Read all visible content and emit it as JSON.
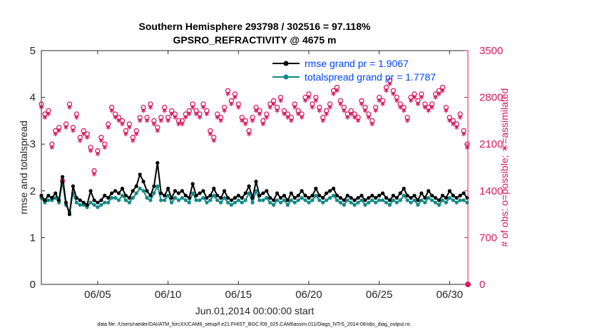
{
  "chart_data": {
    "type": "line",
    "title_line1": "Southern Hemisphere 293798 / 302516 = 97.118%",
    "title_line2": "GPSRO_REFRACTIVITY @ 4675 m",
    "xlabel": "Jun.01,2014 00:00:00 start",
    "ylabel_left": "rmse and totalspread",
    "ylabel_right": "# of obs: o=possible; ∗=assimilated",
    "xlim": [
      1,
      31.3
    ],
    "ylim_left": [
      0,
      5
    ],
    "ylim_right": [
      0,
      3500
    ],
    "x_ticks": [
      {
        "v": 5,
        "label": "06/05"
      },
      {
        "v": 10,
        "label": "06/10"
      },
      {
        "v": 15,
        "label": "06/15"
      },
      {
        "v": 20,
        "label": "06/20"
      },
      {
        "v": 25,
        "label": "06/25"
      },
      {
        "v": 30,
        "label": "06/30"
      }
    ],
    "y_ticks_left": [
      "0",
      "1",
      "2",
      "3",
      "4",
      "5"
    ],
    "y_ticks_right": [
      "0",
      "700",
      "1400",
      "2100",
      "2800",
      "3500"
    ],
    "legend": [
      "rmse grand pr = 1.9067",
      "totalspread grand pr = 1.7787"
    ],
    "x_start": 1.0,
    "x_step": 0.25,
    "series": [
      {
        "name": "rmse",
        "color": "#000000",
        "values": [
          1.9,
          1.8,
          1.9,
          1.85,
          1.95,
          1.8,
          2.3,
          1.75,
          1.5,
          2.1,
          1.85,
          1.8,
          1.75,
          1.7,
          2.0,
          1.8,
          1.75,
          1.8,
          1.9,
          1.85,
          1.95,
          2.0,
          1.95,
          2.05,
          1.9,
          1.85,
          2.0,
          2.1,
          2.35,
          2.2,
          2.0,
          1.9,
          2.1,
          2.6,
          1.95,
          1.9,
          2.05,
          1.85,
          2.0,
          1.95,
          2.0,
          1.9,
          1.85,
          2.15,
          1.9,
          1.95,
          2.0,
          1.85,
          1.9,
          2.05,
          1.9,
          1.85,
          2.0,
          1.85,
          1.8,
          1.85,
          1.9,
          1.85,
          1.95,
          2.1,
          1.85,
          2.2,
          1.9,
          1.95,
          2.0,
          1.85,
          1.8,
          1.95,
          1.85,
          1.9,
          1.8,
          1.95,
          1.85,
          1.9,
          2.0,
          1.9,
          1.85,
          1.9,
          2.05,
          1.9,
          1.85,
          1.95,
          2.0,
          2.05,
          1.9,
          1.85,
          1.8,
          1.9,
          1.85,
          1.8,
          1.85,
          1.9,
          1.8,
          1.85,
          1.9,
          1.85,
          1.9,
          1.95,
          1.85,
          1.8,
          1.9,
          1.85,
          1.95,
          2.05,
          1.9,
          1.85,
          1.9,
          1.8,
          1.95,
          1.85,
          2.0,
          1.9,
          1.85,
          1.8,
          1.9,
          1.85,
          2.0,
          1.9,
          1.85,
          1.9,
          1.95,
          1.85,
          1.9,
          2.0,
          1.85,
          1.9,
          1.85,
          1.9,
          1.95,
          1.9,
          1.85,
          2.0,
          1.95,
          1.9,
          1.85,
          1.95,
          1.8,
          1.9,
          1.85,
          2.0,
          1.9,
          1.95,
          2.0,
          1.9,
          1.85,
          1.95,
          1.9,
          1.85,
          1.95,
          2.0,
          1.9,
          1.85,
          1.95,
          1.9,
          1.8,
          1.9,
          1.95,
          2.0,
          1.9,
          1.85,
          1.95,
          1.85,
          1.9,
          2.0,
          1.95,
          2.0,
          1.9,
          1.85,
          1.9,
          1.8,
          1.95,
          1.9,
          2.0,
          1.9,
          1.85,
          1.95,
          1.9,
          1.85,
          2.0,
          1.95,
          1.9,
          2.05,
          1.9,
          1.85,
          2.0,
          1.95,
          1.85,
          1.95,
          2.0,
          1.9,
          1.85,
          1.95,
          2.05,
          1.9,
          1.85,
          1.95,
          2.0,
          1.9,
          1.85,
          1.9,
          1.95,
          2.0,
          1.85,
          1.9,
          1.95,
          2.0,
          1.9,
          2.0,
          2.05,
          1.9,
          1.95,
          1.9,
          1.85,
          1.9,
          1.95,
          2.0,
          1.9,
          2.0,
          1.85,
          1.9,
          1.95,
          2.0,
          1.9,
          1.85,
          1.95,
          2.0,
          1.95,
          1.9,
          1.85,
          1.9,
          1.95,
          2.0,
          1.9,
          1.95,
          2.0,
          1.9,
          1.95,
          2.0,
          1.9,
          1.85,
          1.95,
          2.05,
          1.9,
          1.85,
          1.95,
          2.0,
          1.9,
          1.85,
          1.95,
          2.05,
          1.95,
          1.9,
          1.85,
          1.95,
          2.0,
          1.9,
          1.85,
          1.9,
          1.95,
          1.9,
          1.85,
          1.95,
          2.0,
          1.9,
          1.95,
          2.0,
          1.9,
          1.85,
          1.95,
          2.0,
          1.9,
          1.95,
          2.05,
          1.9,
          1.85,
          1.95,
          2.0,
          1.9,
          1.85,
          1.95,
          2.0,
          1.9,
          1.95,
          2.0,
          1.95,
          1.9,
          1.85,
          1.95,
          2.0,
          1.9,
          1.85,
          1.95,
          2.0,
          1.9,
          1.85,
          1.95,
          2.0,
          1.95,
          1.9,
          1.85,
          1.95,
          2.05,
          1.9,
          1.85,
          1.95,
          2.0,
          1.9,
          1.95,
          2.05
        ]
      },
      {
        "name": "totalspread",
        "color": "#108a85",
        "values": [
          1.85,
          1.75,
          1.8,
          1.8,
          1.85,
          1.75,
          2.2,
          1.7,
          1.55,
          1.95,
          1.75,
          1.7,
          1.7,
          1.65,
          1.75,
          1.7,
          1.65,
          1.7,
          1.75,
          1.75,
          1.85,
          1.85,
          1.8,
          1.9,
          1.8,
          1.75,
          1.85,
          1.95,
          2.05,
          2.0,
          1.85,
          1.8,
          1.95,
          2.1,
          1.8,
          1.8,
          1.9,
          1.75,
          1.85,
          1.8,
          1.85,
          1.8,
          1.75,
          1.95,
          1.8,
          1.8,
          1.85,
          1.75,
          1.8,
          1.9,
          1.8,
          1.75,
          1.85,
          1.75,
          1.7,
          1.75,
          1.8,
          1.75,
          1.8,
          1.95,
          1.75,
          2.0,
          1.8,
          1.8,
          1.85,
          1.75,
          1.7,
          1.8,
          1.75,
          1.8,
          1.7,
          1.8,
          1.75,
          1.8,
          1.85,
          1.8,
          1.75,
          1.8,
          1.9,
          1.8,
          1.75,
          1.8,
          1.85,
          1.9,
          1.8,
          1.75,
          1.7,
          1.8,
          1.75,
          1.7,
          1.75,
          1.8,
          1.7,
          1.75,
          1.8,
          1.75,
          1.8,
          1.8,
          1.75,
          1.7,
          1.8,
          1.75,
          1.8,
          1.9,
          1.8,
          1.75,
          1.8,
          1.7,
          1.8,
          1.75,
          1.85,
          1.8,
          1.75,
          1.7,
          1.8,
          1.75,
          1.85,
          1.8,
          1.75,
          1.8,
          1.8,
          1.75,
          1.8,
          1.85,
          1.75,
          1.8,
          1.75,
          1.8,
          1.8,
          1.8,
          1.75,
          1.85,
          1.8,
          1.8,
          1.75,
          1.8,
          1.7,
          1.8,
          1.75,
          1.85,
          1.8,
          1.8,
          1.85,
          1.8,
          1.75,
          1.8,
          1.8,
          1.75,
          1.8,
          1.85,
          1.8,
          1.75,
          1.8,
          1.8,
          1.7,
          1.8,
          1.8,
          1.85,
          1.8,
          1.75,
          1.8,
          1.75,
          1.8,
          1.85,
          1.8,
          1.85,
          1.8,
          1.75,
          1.8,
          1.7,
          1.8,
          1.8,
          1.85,
          1.8,
          1.75,
          1.8,
          1.8,
          1.75,
          1.85,
          1.8,
          1.8,
          1.9,
          1.8,
          1.75,
          1.85,
          1.8,
          1.75,
          1.8,
          1.85,
          1.8,
          1.75,
          1.8,
          1.9,
          1.8,
          1.75,
          1.8,
          1.85,
          1.8,
          1.75,
          1.8,
          1.8,
          1.85,
          1.75,
          1.8,
          1.8,
          1.85,
          1.8,
          1.85,
          1.9,
          1.8,
          1.8,
          1.8,
          1.75,
          1.8,
          1.8,
          1.85,
          1.8,
          1.85,
          1.75,
          1.8,
          1.8,
          1.85,
          1.8,
          1.75,
          1.8,
          1.85,
          1.8,
          1.8,
          1.75,
          1.8,
          1.8,
          1.85,
          1.8,
          1.8,
          1.85,
          1.8,
          1.8,
          1.85,
          1.8,
          1.75,
          1.8,
          1.9,
          1.8,
          1.75,
          1.8,
          1.85,
          1.8,
          1.75,
          1.8,
          1.9,
          1.8,
          1.8,
          1.75,
          1.8,
          1.85,
          1.8,
          1.75,
          1.8,
          1.8,
          1.8,
          1.75,
          1.8,
          1.85,
          1.8,
          1.8,
          1.85,
          1.8,
          1.75,
          1.8,
          1.85,
          1.8,
          1.8,
          1.9,
          1.8,
          1.75,
          1.8,
          1.85,
          1.8,
          1.75,
          1.8,
          1.85,
          1.8,
          1.8,
          1.85,
          1.8,
          1.8,
          1.75,
          1.8,
          1.85,
          1.8,
          1.75,
          1.8,
          1.85,
          1.8,
          1.75,
          1.8,
          1.85,
          1.8,
          1.8,
          1.75,
          1.8,
          1.9,
          1.8,
          1.75,
          1.8,
          1.85,
          1.8,
          1.8,
          1.9
        ]
      }
    ],
    "obs_possible": [
      2700,
      2550,
      2600,
      2100,
      2300,
      2350,
      1550,
      2400,
      2700,
      2350,
      2550,
      2200,
      2300,
      2250,
      2050,
      1700,
      2000,
      2200,
      2100,
      2400,
      2650,
      2550,
      2500,
      2450,
      2300,
      2400,
      2200,
      2300,
      2500,
      2650,
      2500,
      2700,
      2450,
      2350,
      2500,
      2650,
      2500,
      2600,
      2550,
      2450,
      2450,
      2550,
      2600,
      2700,
      2600,
      2550,
      2700,
      2600,
      2300,
      2200,
      2550,
      2500,
      2650,
      2900,
      2750,
      2850,
      2700,
      2500,
      2450,
      2300,
      2500,
      2650,
      2600,
      2450,
      2550,
      2700,
      2750,
      2650,
      2800,
      2600,
      2550,
      2500,
      2700,
      2600,
      2550,
      2800,
      2850,
      2700,
      2800,
      2650,
      2500,
      2600,
      2700,
      2900,
      2950,
      2750,
      2650,
      2550,
      2600,
      2550,
      2500,
      2750,
      2650,
      2550,
      2450,
      2650,
      2800,
      2750,
      2950,
      3050,
      2900,
      2800,
      2700,
      2650,
      2500,
      2800,
      2850,
      2750,
      2850,
      2700,
      2650,
      2700,
      2850,
      2900,
      2950,
      2650,
      2500,
      2450,
      2400,
      2550,
      2300,
      2100,
      2650,
      2850,
      2700,
      2750,
      2850,
      2950,
      2700,
      2650,
      2600,
      2550,
      2700,
      2800,
      2850,
      2750,
      2900,
      2950,
      2850,
      2700,
      2600,
      2550,
      2650,
      2700,
      2750,
      2850,
      2800,
      2900,
      2950,
      2850,
      2750,
      2700,
      2650,
      2600,
      2550,
      2600,
      2650,
      2700,
      2750,
      2800,
      2900,
      3000,
      3100,
      2950,
      2850,
      2800,
      2700,
      2600,
      2650,
      2700,
      2800,
      2850,
      2950,
      3050,
      3150,
      3050,
      2950,
      2850,
      2800,
      2750,
      2700,
      2800,
      2900,
      3000,
      2950,
      2850,
      2750,
      2650,
      2700,
      2750,
      2800,
      2900,
      2850,
      2750,
      2650,
      2600,
      2700,
      2800,
      2850,
      2750,
      2650,
      2600,
      2550,
      2650,
      2750,
      2800,
      2700,
      2650,
      2600,
      2550,
      2500,
      2600,
      2700,
      2750,
      2650,
      2600,
      2550,
      2600,
      2650,
      2550,
      2450,
      2500,
      2550,
      2650,
      2600,
      2500,
      2450,
      2550,
      2600,
      2650,
      2550,
      2500,
      2600,
      2650,
      2700,
      2600,
      2550,
      2500,
      2450,
      2550,
      2600,
      2500,
      2450,
      2500,
      2550,
      2600,
      2550,
      2500,
      2450,
      2550,
      2600,
      2550,
      2500,
      2600,
      2650,
      2600,
      2550,
      2500,
      2550,
      2600,
      2650,
      2550,
      2500,
      2600,
      2650,
      2600,
      2550,
      2500,
      2550,
      2600,
      2650,
      2600,
      2550,
      2500,
      2550,
      2600,
      2650,
      2600,
      2550,
      2500,
      2450,
      2500,
      2550,
      2600,
      2550,
      2500,
      2550,
      2600,
      2650,
      2600,
      2550,
      2500,
      2450,
      2500,
      2550,
      2600,
      2550,
      2500,
      2550,
      2600,
      2550,
      2500,
      2450,
      2550,
      2600,
      2550,
      2500
    ],
    "obs_assimilated": [
      2650,
      2500,
      2550,
      2050,
      2250,
      2300,
      1500,
      2350,
      2650,
      2300,
      2500,
      2150,
      2250,
      2200,
      2000,
      1650,
      1950,
      2150,
      2050,
      2350,
      2600,
      2500,
      2450,
      2400,
      2250,
      2350,
      2150,
      2250,
      2450,
      2600,
      2450,
      2650,
      2400,
      2300,
      2450,
      2600,
      2450,
      2550,
      2500,
      2400,
      2400,
      2500,
      2550,
      2650,
      2550,
      2500,
      2650,
      2550,
      2250,
      2150,
      2500,
      2450,
      2600,
      2850,
      2700,
      2800,
      2650,
      2450,
      2400,
      2250,
      2450,
      2600,
      2550,
      2400,
      2500,
      2650,
      2700,
      2600,
      2750,
      2550,
      2500,
      2450,
      2650,
      2550,
      2500,
      2750,
      2800,
      2650,
      2750,
      2600,
      2450,
      2550,
      2650,
      2850,
      2900,
      2700,
      2600,
      2500,
      2550,
      2500,
      2450,
      2700,
      2600,
      2500,
      2400,
      2600,
      2750,
      2700,
      2900,
      3000,
      2850,
      2750,
      2650,
      2600,
      2450,
      2750,
      2800,
      2700,
      2800,
      2650,
      2600,
      2650,
      2800,
      2850,
      2900,
      2600,
      2450,
      2400,
      2350,
      2500,
      2250,
      2050,
      2600,
      2800,
      2650,
      2700,
      2800,
      2900,
      2650,
      2600,
      2550,
      2500,
      2650,
      2750,
      2800,
      2700,
      2850,
      2900,
      2800,
      2650,
      2550,
      2500,
      2600,
      2650,
      2700,
      2800,
      2750,
      2850,
      2900,
      2800,
      2700,
      2650,
      2600,
      2550,
      2500,
      2550,
      2600,
      2650,
      2700,
      2750,
      2850,
      2950,
      3050,
      2900,
      2800,
      2750,
      2650,
      2550,
      2600,
      2650,
      2750,
      2800,
      2900,
      3000,
      3100,
      3000,
      2900,
      2800,
      2750,
      2700,
      2650,
      2750,
      2850,
      2950,
      2900,
      2800,
      2700,
      2600,
      2650,
      2700,
      2750,
      2850,
      2800,
      2700,
      2600,
      2550,
      2650,
      2750,
      2800,
      2700,
      2600,
      2550,
      2500,
      2600,
      2700,
      2750,
      2650,
      2600,
      2550,
      2500,
      2450,
      2550,
      2650,
      2700,
      2600,
      2550,
      2500,
      2550,
      2600,
      2500,
      2400,
      2450,
      2500,
      2600,
      2550,
      2450,
      2400,
      2500,
      2550,
      2600,
      2500,
      2450,
      2550,
      2600,
      2650,
      2550,
      2500,
      2450,
      2400,
      2500,
      2550,
      2450,
      2400,
      2450,
      2500,
      2550,
      2500,
      2450,
      2400,
      2500,
      2550,
      2500,
      2450,
      2550,
      2600,
      2550,
      2500,
      2450,
      2500,
      2550,
      2600,
      2500,
      2450,
      2550,
      2600,
      2550,
      2500,
      2450,
      2500,
      2550,
      2600,
      2550,
      2500,
      2450,
      2500,
      2550,
      2600,
      2550,
      2500,
      2450,
      2400,
      2450,
      2500,
      2550,
      2500,
      2450,
      2500,
      2550,
      2600,
      2550,
      2500,
      2450,
      2400,
      2450,
      2500,
      2550,
      2500,
      2450,
      2500,
      2550,
      2500,
      2450,
      2400,
      2500,
      2550,
      2500,
      2450
    ],
    "obs_color": "#d81b60"
  },
  "footer": "data file: /Users/raeder/DAI/ATM_forcXX/CAM6_setup/f.e21.FHIST_BGC.f09_025.CAM6assim.011/Diags_NTrS_2014-06/obs_diag_output.nc"
}
